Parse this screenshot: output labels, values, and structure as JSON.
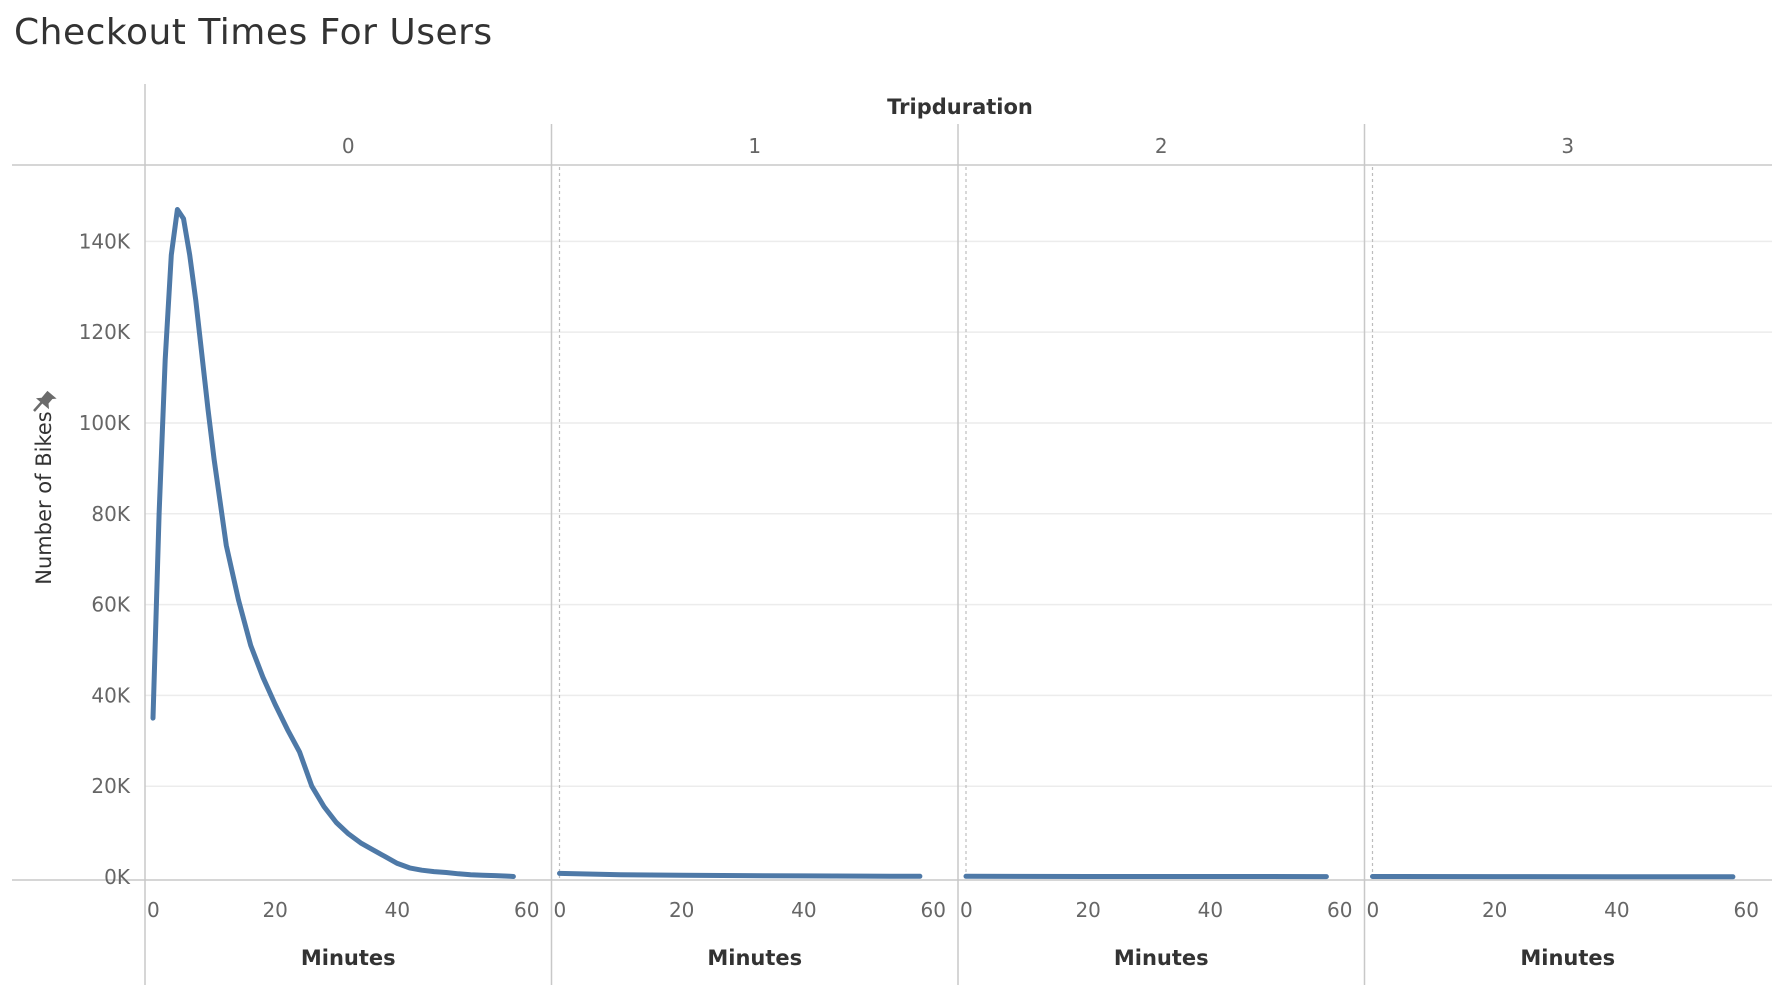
{
  "chart_data": {
    "type": "line",
    "title": "Checkout Times For Users",
    "column_header": "Tripduration",
    "ylabel": "Number of Bikes",
    "xlabel": "Minutes",
    "y_tick_labels": [
      "0K",
      "20K",
      "40K",
      "60K",
      "80K",
      "100K",
      "120K",
      "140K"
    ],
    "y_ticks": [
      0,
      20000,
      40000,
      60000,
      80000,
      100000,
      120000,
      140000
    ],
    "ylim": [
      0,
      148000
    ],
    "x_ticks": [
      0,
      20,
      40,
      60
    ],
    "x_tick_labels": [
      "0",
      "20",
      "40",
      "60"
    ],
    "xlim": [
      0,
      60
    ],
    "grid": true,
    "color": "#4e79a7",
    "pin_icon": "pin-icon",
    "panels": [
      {
        "label": "0",
        "x": [
          0,
          1,
          2,
          3,
          4,
          5,
          6,
          7,
          8,
          9,
          10,
          12,
          14,
          16,
          18,
          20,
          22,
          24,
          26,
          28,
          30,
          32,
          34,
          36,
          38,
          40,
          42,
          44,
          46,
          48,
          50,
          52,
          54,
          56,
          58,
          59
        ],
        "y": [
          35000,
          80000,
          114000,
          137000,
          147000,
          145000,
          137000,
          127000,
          115000,
          103000,
          92000,
          73000,
          61000,
          51000,
          44000,
          38000,
          32500,
          27500,
          20000,
          15500,
          12000,
          9500,
          7500,
          6000,
          4500,
          3000,
          2000,
          1500,
          1200,
          1000,
          700,
          500,
          400,
          300,
          200,
          100
        ]
      },
      {
        "label": "1",
        "x": [
          0,
          10,
          20,
          30,
          40,
          50,
          59
        ],
        "y": [
          800,
          500,
          400,
          300,
          250,
          200,
          150
        ]
      },
      {
        "label": "2",
        "x": [
          0,
          20,
          40,
          59
        ],
        "y": [
          150,
          120,
          100,
          80
        ]
      },
      {
        "label": "3",
        "x": [
          0,
          20,
          40,
          59
        ],
        "y": [
          100,
          80,
          60,
          50
        ]
      }
    ]
  }
}
